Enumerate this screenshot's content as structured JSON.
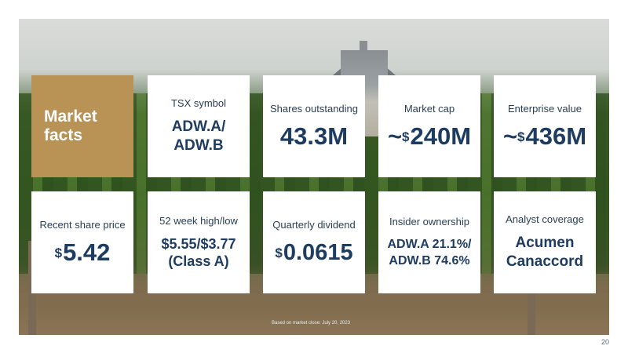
{
  "title_card": {
    "label": "Market facts"
  },
  "cards": [
    {
      "label": "TSX symbol",
      "value": "ADW.A/ ADW.B"
    },
    {
      "label": "Shares outstanding",
      "value": "43.3M"
    },
    {
      "label": "Market cap",
      "prefix": "~",
      "sup": "$",
      "value": "240M"
    },
    {
      "label": "Enterprise value",
      "prefix": "~",
      "sup": "$",
      "value": "436M"
    },
    {
      "label": "Recent share price",
      "sup": "$",
      "value": "5.42"
    },
    {
      "label": "52 week high/low",
      "value": "$5.55/$3.77 (Class A)"
    },
    {
      "label": "Quarterly dividend",
      "sup": "$",
      "value": "0.0615"
    },
    {
      "label": "Insider ownership",
      "value": "ADW.A 21.1%/ ADW.B 74.6%"
    },
    {
      "label": "Analyst coverage",
      "value": "Acumen Canaccord"
    }
  ],
  "footnote": "Based on market close: July 20, 2023",
  "page_number": "20",
  "colors": {
    "accent": "#b99256",
    "value_text": "#1e3c60"
  }
}
